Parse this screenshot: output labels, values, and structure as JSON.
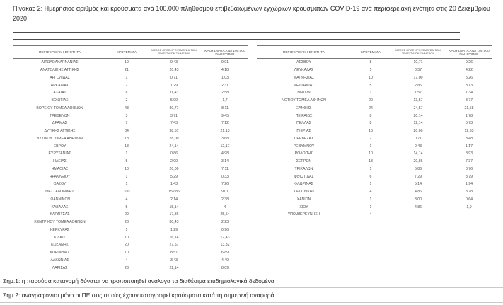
{
  "title": "Πίνακας 2: Ημερήσιος αριθμός και κρούσματα ανά 100.000 πληθυσμού επιβεβαιωμένων εγχώριων κρουσμάτων COVID-19 ανά περιφερειακή ενότητα στις 20 Δεκεμβρίου 2020",
  "table": {
    "headers": {
      "region": "ΠΕΡΙΦΕΡΕΙΑΚΗ ΕΝΟΤΗΤΑ",
      "cases": "ΚΡΟΥΣΜΑΤΑ",
      "avg7_line1": "ΜΕΣΟΣ ΟΡΟΣ ΚΡΟΥΣΜΑΤΩΝ ΤΩΝ",
      "avg7_line2": "ΤΕΛΕΥΤΑΙΩΝ 7 ΗΜΕΡΩΝ",
      "per100k": "ΚΡΟΥΣΜΑΤΑ ΑΝΑ 100.000 ΠΛΗΘΥΣΜΟ"
    },
    "left_rows": [
      [
        "ΑΙΤΩΛΟΑΚΑΡΝΑΝΙΑΣ",
        "19",
        "9,43",
        "9,01"
      ],
      [
        "ΑΝΑΤΟΛΙΚΗΣ ΑΤΤΙΚΗΣ",
        "21",
        "20,43",
        "4,18"
      ],
      [
        "ΑΡΓΟΛΙΔΑΣ",
        "1",
        "0,71",
        "1,03"
      ],
      [
        "ΑΡΚΑΔΙΑΣ",
        "2",
        "1,29",
        "2,31"
      ],
      [
        "ΑΧΑΪΑΣ",
        "8",
        "11,43",
        "2,58"
      ],
      [
        "ΒΟΙΩΤΙΑΣ",
        "2",
        "5,00",
        "1,7"
      ],
      [
        "ΒΟΡΕΙΟΥ ΤΟΜΕΑ ΑΘΗΝΩΝ",
        "48",
        "30,71",
        "8,11"
      ],
      [
        "ΓΡΕΒΕΝΩΝ",
        "3",
        "3,71",
        "9,45"
      ],
      [
        "ΔΡΑΜΑΣ",
        "7",
        "7,43",
        "7,12"
      ],
      [
        "ΔΥΤΙΚΗΣ ΑΤΤΙΚΗΣ",
        "34",
        "38,57",
        "21,13"
      ],
      [
        "ΔΥΤΙΚΟΥ ΤΟΜΕΑ ΑΘΗΝΩΝ",
        "18",
        "28,00",
        "3,68"
      ],
      [
        "ΕΒΡΟΥ",
        "18",
        "24,14",
        "12,17"
      ],
      [
        "ΕΥΡΥΤΑΝΙΑΣ",
        "1",
        "0,86",
        "4,98"
      ],
      [
        "ΗΛΕΙΑΣ",
        "5",
        "2,00",
        "3,14"
      ],
      [
        "ΗΜΑΘΙΑΣ",
        "10",
        "20,00",
        "7,11"
      ],
      [
        "ΗΡΑΚΛΕΙΟΥ",
        "1",
        "5,29",
        "0,33"
      ],
      [
        "ΘΑΣΟΥ",
        "1",
        "1,43",
        "7,26"
      ],
      [
        "ΘΕΣΣΑΛΟΝΙΚΗΣ",
        "100",
        "152,86",
        "9,01"
      ],
      [
        "ΙΩΑΝΝΙΝΩΝ",
        "4",
        "2,14",
        "2,38"
      ],
      [
        "ΚΑΒΑΛΑΣ",
        "5",
        "15,14",
        "4"
      ],
      [
        "ΚΑΡΔΙΤΣΑΣ",
        "29",
        "17,86",
        "25,54"
      ],
      [
        "ΚΕΝΤΡΙΚΟΥ ΤΟΜΕΑ ΑΘΗΝΩΝ",
        "23",
        "80,43",
        "2,23"
      ],
      [
        "ΚΕΡΚΥΡΑΣ",
        "1",
        "1,29",
        "0,96"
      ],
      [
        "ΚΙΛΚΙΣ",
        "10",
        "16,14",
        "12,43"
      ],
      [
        "ΚΟΖΑΝΗΣ",
        "20",
        "27,57",
        "13,32"
      ],
      [
        "ΚΟΡΙΝΘΙΑΣ",
        "10",
        "8,57",
        "6,89"
      ],
      [
        "ΛΑΚΩΝΙΑΣ",
        "4",
        "3,43",
        "4,49"
      ],
      [
        "ΛΑΡΙΣΑΣ",
        "23",
        "22,14",
        "8,09"
      ]
    ],
    "right_rows": [
      [
        "ΛΕΣΒΟΥ",
        "8",
        "10,71",
        "9,26"
      ],
      [
        "ΛΕΥΚΑΔΑΣ",
        "1",
        "0,57",
        "4,22"
      ],
      [
        "ΜΑΓΝΗΣΙΑΣ",
        "10",
        "17,00",
        "5,26"
      ],
      [
        "ΜΕΣΣΗΝΙΑΣ",
        "5",
        "2,86",
        "3,13"
      ],
      [
        "ΝΗΣΩΝ",
        "1",
        "1,57",
        "1,34"
      ],
      [
        "ΝΟΤΙΟΥ ΤΟΜΕΑ ΑΘΗΝΩΝ",
        "20",
        "13,57",
        "3,77"
      ],
      [
        "ΞΑΝΘΗΣ",
        "24",
        "24,57",
        "21,58"
      ],
      [
        "ΠΕΙΡΑΙΩΣ",
        "8",
        "20,14",
        "1,78"
      ],
      [
        "ΠΕΛΛΑΣ",
        "8",
        "12,14",
        "5,73"
      ],
      [
        "ΠΙΕΡΙΑΣ",
        "16",
        "20,00",
        "12,63"
      ],
      [
        "ΠΡΕΒΕΖΑΣ",
        "2",
        "0,71",
        "3,48"
      ],
      [
        "ΡΕΘΥΜΝΟΥ",
        "1",
        "0,43",
        "1,17"
      ],
      [
        "ΡΟΔΟΠΗΣ",
        "10",
        "14,14",
        "8,93"
      ],
      [
        "ΣΕΡΡΩΝ",
        "13",
        "20,86",
        "7,37"
      ],
      [
        "ΤΡΙΚΑΛΩΝ",
        "1",
        "5,86",
        "0,76"
      ],
      [
        "ΦΘΙΩΤΙΔΑΣ",
        "6",
        "7,29",
        "3,79"
      ],
      [
        "ΦΛΩΡΙΝΑΣ",
        "1",
        "5,14",
        "1,94"
      ],
      [
        "ΧΑΛΚΙΔΙΚΗΣ",
        "4",
        "4,86",
        "3,78"
      ],
      [
        "ΧΑΝΙΩΝ",
        "1",
        "3,00",
        "0,64"
      ],
      [
        "ΧΙΟΥ",
        "1",
        "4,86",
        "1,9"
      ],
      [
        "ΥΠΟ ΔΙΕΡΕΥΝΗΣΗ",
        "4",
        "",
        ""
      ]
    ]
  },
  "notes": {
    "note1": "Σημ.1: η παρούσα κατανομή δύναται να τροποποιηθεί ανάλογα τα διαθέσιμα επιδημιολογικά δεδομένα",
    "note2": "Σημ.2: αναγράφονται μόνο οι ΠΕ στις οποίες έχουν καταγραφεί κρούσματα κατά τη σημερινή αναφορά"
  }
}
